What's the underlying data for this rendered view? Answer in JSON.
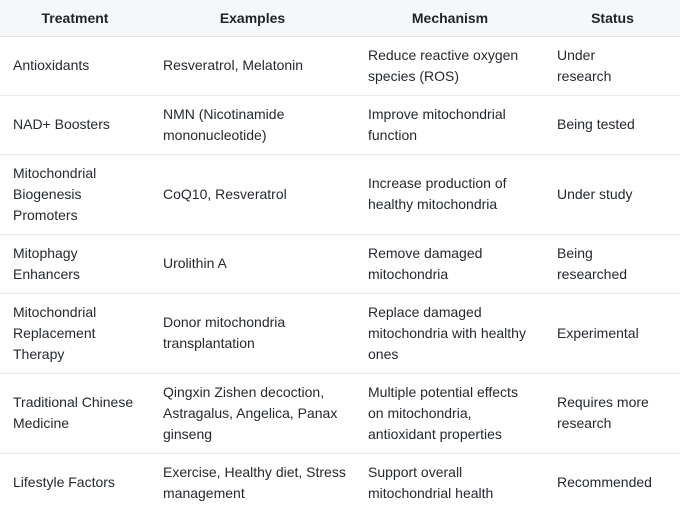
{
  "chart_data": {
    "type": "table",
    "columns": [
      "Treatment",
      "Examples",
      "Mechanism",
      "Status"
    ],
    "rows": [
      {
        "treatment": "Antioxidants",
        "examples": "Resveratrol, Melatonin",
        "mechanism": "Reduce reactive oxygen species (ROS)",
        "status": "Under research"
      },
      {
        "treatment": "NAD+ Boosters",
        "examples": "NMN (Nicotinamide mononucleotide)",
        "mechanism": "Improve mitochondrial function",
        "status": "Being tested"
      },
      {
        "treatment": "Mitochondrial Biogenesis Promoters",
        "examples": "CoQ10, Resveratrol",
        "mechanism": "Increase production of healthy mitochondria",
        "status": "Under study"
      },
      {
        "treatment": "Mitophagy Enhancers",
        "examples": "Urolithin A",
        "mechanism": "Remove damaged mitochondria",
        "status": "Being researched"
      },
      {
        "treatment": "Mitochondrial Replacement Therapy",
        "examples": "Donor mitochondria transplantation",
        "mechanism": "Replace damaged mitochondria with healthy ones",
        "status": "Experimental"
      },
      {
        "treatment": "Traditional Chinese Medicine",
        "examples": "Qingxin Zishen decoction, Astragalus, Angelica, Panax ginseng",
        "mechanism": "Multiple potential effects on mitochondria, antioxidant properties",
        "status": "Requires more research"
      },
      {
        "treatment": "Lifestyle Factors",
        "examples": "Exercise, Healthy diet, Stress management",
        "mechanism": "Support overall mitochondrial health",
        "status": "Recommended"
      }
    ],
    "title": "",
    "layout_hints": {
      "header_align": "center",
      "body_align": "left",
      "grid": "horizontal-dividers-only",
      "legend_position": "none"
    },
    "colors": {
      "header_bg": "#f6f7f8",
      "header_border": "#dfe2e6",
      "row_divider": "#e7e9ec",
      "text": "#24292f",
      "row_bg": "#ffffff"
    }
  }
}
